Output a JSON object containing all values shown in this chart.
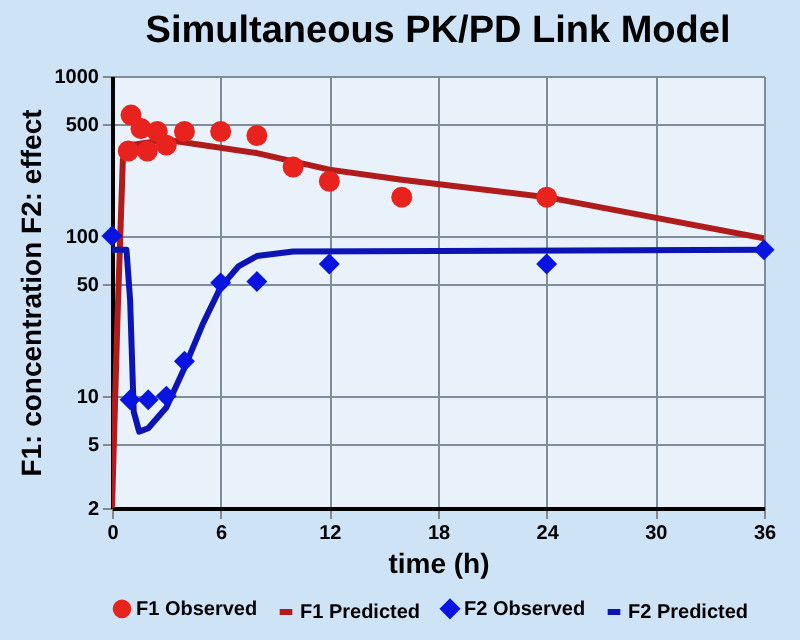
{
  "chart_data": {
    "type": "scatter",
    "title": "Simultaneous PK/PD Link Model",
    "xlabel": "time (h)",
    "ylabel": "F1: concentration   F2: effect",
    "log": "y",
    "grid": true,
    "legend": "bottom",
    "xlim": [
      0,
      36
    ],
    "xticks": [
      0,
      6,
      12,
      18,
      24,
      30,
      36
    ],
    "ylim": [
      2,
      1000
    ],
    "yticks": [
      2,
      5,
      10,
      50,
      100,
      500,
      1000
    ],
    "series": [
      {
        "name": "F1 Observed",
        "type": "scatter",
        "marker": "circle",
        "color": "#e8231e",
        "x": [
          0.9,
          1.05,
          1.6,
          1.95,
          2.5,
          3,
          4,
          6,
          8,
          10,
          12,
          16,
          24
        ],
        "values": [
          340,
          570,
          470,
          340,
          450,
          370,
          450,
          450,
          425,
          270,
          220,
          175,
          175
        ]
      },
      {
        "name": "F1 Predicted",
        "type": "line",
        "color": "#b01c1c",
        "x": [
          0,
          0.3,
          0.6,
          1,
          3,
          8,
          12,
          16,
          24,
          36
        ],
        "values": [
          2,
          30,
          300,
          370,
          400,
          330,
          260,
          225,
          175,
          97
        ]
      },
      {
        "name": "F2 Observed",
        "type": "scatter",
        "marker": "diamond",
        "color": "#0a14e0",
        "x": [
          0,
          1,
          2,
          3,
          4,
          6,
          8,
          12,
          24,
          36
        ],
        "values": [
          100,
          9.5,
          9.5,
          10,
          16.5,
          51,
          52,
          67,
          67,
          82
        ]
      },
      {
        "name": "F2 Predicted",
        "type": "line",
        "color": "#0c14b4",
        "x": [
          0,
          0.8,
          1,
          1.2,
          1.5,
          2,
          3,
          4,
          5,
          6,
          7,
          8,
          10,
          36
        ],
        "values": [
          82,
          82,
          40,
          8,
          6,
          6.3,
          8.5,
          15,
          28,
          48,
          65,
          75,
          80,
          82
        ]
      }
    ]
  }
}
